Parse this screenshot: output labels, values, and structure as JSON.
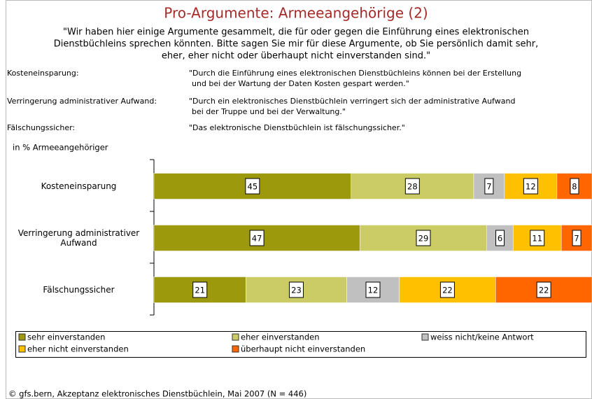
{
  "title": "Pro-Argumente: Armeeangehörige (2)",
  "subtitle_lines": [
    "\"Wir haben hier einige Argumente gesammelt, die für oder gegen die Einführung eines elektronischen",
    "Dienstbüchleins sprechen könnten. Bitte sagen Sie mir für diese Argumente, ob Sie persönlich damit sehr,",
    "eher, eher nicht oder überhaupt nicht einverstanden sind.\""
  ],
  "definitions": [
    {
      "term": "Kosteneinsparung:",
      "lines": [
        "\"Durch die Einführung eines elektronischen Dienstbüchleins können bei der Erstellung",
        "und bei der Wartung der Daten Kosten gespart werden.\""
      ]
    },
    {
      "term": "Verringerung administrativer Aufwand:",
      "lines": [
        "\"Durch ein elektronisches Dienstbüchlein verringert sich der administrative Aufwand",
        "bei der Truppe und bei der Verwaltung.\""
      ]
    },
    {
      "term": "Fälschungssicher:",
      "lines": [
        "\"Das elektronische Dienstbüchlein ist fälschungssicher.\""
      ]
    }
  ],
  "chart_data": {
    "type": "bar",
    "orientation": "horizontal",
    "stacked": true,
    "axis_label": "in % Armeeangehöriger",
    "categories": [
      "Kosteneinsparung",
      "Verringerung administrativer Aufwand",
      "Fälschungssicher"
    ],
    "series": [
      {
        "name": "sehr einverstanden",
        "color": "#9c9a0c",
        "values": [
          45,
          47,
          21
        ]
      },
      {
        "name": "eher einverstanden",
        "color": "#cccc66",
        "values": [
          28,
          29,
          23
        ]
      },
      {
        "name": "weiss nicht/keine Antwort",
        "color": "#c0c0c0",
        "values": [
          7,
          6,
          12
        ]
      },
      {
        "name": "eher nicht einverstanden",
        "color": "#ffc000",
        "values": [
          12,
          11,
          22
        ]
      },
      {
        "name": "überhaupt nicht einverstanden",
        "color": "#ff6600",
        "values": [
          8,
          7,
          22
        ]
      }
    ],
    "xlim": [
      0,
      100
    ]
  },
  "source": "© gfs.bern, Akzeptanz elektronisches Dienstbüchlein, Mai 2007 (N = 446)"
}
